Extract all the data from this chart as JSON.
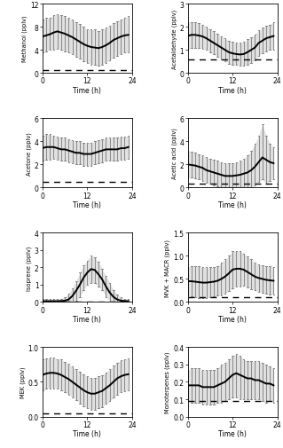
{
  "subplots": [
    {
      "ylabel": "Methanol (pplv)",
      "ylim": [
        0,
        12
      ],
      "yticks": [
        0,
        4,
        8,
        12
      ],
      "mean": [
        6.3,
        6.5,
        6.7,
        7.0,
        7.2,
        7.0,
        6.8,
        6.5,
        6.2,
        5.8,
        5.4,
        5.0,
        4.7,
        4.5,
        4.4,
        4.3,
        4.5,
        4.8,
        5.2,
        5.7,
        6.0,
        6.3,
        6.5,
        6.6
      ],
      "std_upper": [
        9.2,
        9.5,
        9.6,
        10.0,
        10.2,
        10.0,
        9.8,
        9.5,
        9.2,
        8.8,
        8.5,
        8.0,
        7.5,
        7.5,
        7.5,
        7.3,
        7.5,
        7.8,
        8.2,
        8.7,
        9.0,
        9.3,
        9.6,
        9.8
      ],
      "std_lower": [
        3.5,
        3.8,
        4.0,
        4.0,
        4.2,
        4.0,
        3.8,
        3.5,
        3.2,
        2.8,
        2.5,
        2.0,
        1.8,
        1.5,
        1.4,
        1.3,
        1.5,
        1.8,
        2.2,
        2.7,
        3.0,
        3.3,
        3.5,
        3.6
      ],
      "detection_limit": 0.5
    },
    {
      "ylabel": "Acetaldehyde (pplv)",
      "ylim": [
        0,
        3
      ],
      "yticks": [
        0,
        1,
        2,
        3
      ],
      "mean": [
        1.6,
        1.65,
        1.65,
        1.62,
        1.58,
        1.5,
        1.4,
        1.3,
        1.2,
        1.1,
        1.0,
        0.9,
        0.85,
        0.82,
        0.8,
        0.82,
        0.9,
        1.0,
        1.1,
        1.3,
        1.4,
        1.5,
        1.55,
        1.6
      ],
      "std_upper": [
        2.2,
        2.2,
        2.2,
        2.15,
        2.1,
        2.0,
        1.9,
        1.8,
        1.7,
        1.6,
        1.5,
        1.4,
        1.35,
        1.3,
        1.3,
        1.35,
        1.45,
        1.55,
        1.65,
        1.85,
        1.95,
        2.05,
        2.1,
        2.2
      ],
      "std_lower": [
        1.0,
        1.1,
        1.1,
        1.1,
        1.06,
        1.0,
        0.9,
        0.8,
        0.7,
        0.6,
        0.5,
        0.4,
        0.35,
        0.34,
        0.3,
        0.3,
        0.35,
        0.45,
        0.55,
        0.75,
        0.85,
        0.95,
        1.0,
        1.0
      ],
      "detection_limit": 0.6
    },
    {
      "ylabel": "Acetone (pplv)",
      "ylim": [
        0,
        6
      ],
      "yticks": [
        0,
        2,
        4,
        6
      ],
      "mean": [
        3.4,
        3.5,
        3.5,
        3.5,
        3.4,
        3.3,
        3.3,
        3.2,
        3.1,
        3.0,
        3.0,
        2.9,
        2.9,
        2.9,
        3.0,
        3.1,
        3.2,
        3.3,
        3.3,
        3.3,
        3.3,
        3.4,
        3.4,
        3.5
      ],
      "std_upper": [
        4.5,
        4.6,
        4.6,
        4.5,
        4.4,
        4.3,
        4.3,
        4.2,
        4.1,
        4.0,
        4.0,
        3.9,
        3.9,
        3.9,
        4.0,
        4.1,
        4.2,
        4.3,
        4.3,
        4.3,
        4.3,
        4.4,
        4.4,
        4.5
      ],
      "std_lower": [
        2.3,
        2.4,
        2.4,
        2.5,
        2.4,
        2.3,
        2.3,
        2.2,
        2.1,
        2.0,
        2.0,
        1.9,
        1.9,
        1.9,
        2.0,
        2.1,
        2.2,
        2.3,
        2.3,
        2.3,
        2.3,
        2.4,
        2.4,
        2.5
      ],
      "detection_limit": 0.5
    },
    {
      "ylabel": "Acetic acid (pplv)",
      "ylim": [
        0,
        6
      ],
      "yticks": [
        0,
        2,
        4,
        6
      ],
      "mean": [
        2.0,
        1.95,
        1.9,
        1.8,
        1.7,
        1.5,
        1.4,
        1.3,
        1.2,
        1.1,
        1.0,
        1.0,
        1.0,
        1.05,
        1.1,
        1.2,
        1.3,
        1.5,
        1.8,
        2.2,
        2.6,
        2.4,
        2.2,
        2.1
      ],
      "std_upper": [
        3.2,
        3.1,
        3.0,
        2.9,
        2.8,
        2.6,
        2.5,
        2.4,
        2.3,
        2.2,
        2.1,
        2.1,
        2.1,
        2.2,
        2.3,
        2.5,
        2.8,
        3.2,
        3.8,
        4.5,
        5.5,
        4.5,
        3.8,
        3.5
      ],
      "std_lower": [
        0.8,
        0.85,
        0.8,
        0.7,
        0.6,
        0.4,
        0.3,
        0.2,
        0.1,
        0.0,
        0.0,
        0.0,
        0.0,
        0.0,
        0.0,
        0.0,
        0.0,
        0.0,
        0.2,
        0.5,
        0.7,
        0.3,
        0.6,
        0.7
      ],
      "detection_limit": 0.3
    },
    {
      "ylabel": "Isoprene (pplv)",
      "ylim": [
        0,
        4
      ],
      "yticks": [
        0,
        1,
        2,
        3,
        4
      ],
      "mean": [
        0.05,
        0.05,
        0.05,
        0.05,
        0.05,
        0.06,
        0.08,
        0.15,
        0.35,
        0.65,
        1.0,
        1.4,
        1.7,
        1.9,
        1.85,
        1.6,
        1.3,
        0.9,
        0.55,
        0.3,
        0.15,
        0.08,
        0.06,
        0.05
      ],
      "std_upper": [
        0.2,
        0.2,
        0.2,
        0.2,
        0.2,
        0.2,
        0.3,
        0.5,
        0.8,
        1.2,
        1.7,
        2.1,
        2.4,
        2.7,
        2.6,
        2.3,
        1.9,
        1.5,
        1.1,
        0.7,
        0.45,
        0.3,
        0.2,
        0.2
      ],
      "std_lower": [
        0.0,
        0.0,
        0.0,
        0.0,
        0.0,
        0.0,
        0.0,
        0.0,
        0.0,
        0.1,
        0.3,
        0.7,
        1.0,
        1.1,
        1.1,
        0.9,
        0.7,
        0.3,
        0.05,
        0.0,
        0.0,
        0.0,
        0.0,
        0.0
      ],
      "detection_limit": 0.05
    },
    {
      "ylabel": "MVK + MACR (pplv)",
      "ylim": [
        0,
        1.5
      ],
      "yticks": [
        0,
        0.5,
        1.0,
        1.5
      ],
      "mean": [
        0.45,
        0.45,
        0.44,
        0.43,
        0.42,
        0.42,
        0.43,
        0.44,
        0.46,
        0.5,
        0.55,
        0.62,
        0.7,
        0.72,
        0.72,
        0.7,
        0.65,
        0.6,
        0.55,
        0.52,
        0.5,
        0.48,
        0.47,
        0.46
      ],
      "std_upper": [
        0.75,
        0.78,
        0.78,
        0.78,
        0.76,
        0.75,
        0.75,
        0.76,
        0.78,
        0.85,
        0.92,
        1.0,
        1.1,
        1.1,
        1.1,
        1.05,
        0.98,
        0.92,
        0.85,
        0.82,
        0.8,
        0.78,
        0.77,
        0.76
      ],
      "std_lower": [
        0.15,
        0.12,
        0.1,
        0.08,
        0.08,
        0.09,
        0.11,
        0.12,
        0.14,
        0.15,
        0.18,
        0.24,
        0.3,
        0.34,
        0.34,
        0.35,
        0.32,
        0.28,
        0.25,
        0.22,
        0.2,
        0.18,
        0.17,
        0.16
      ],
      "detection_limit": 0.1
    },
    {
      "ylabel": "MEK (pplv)",
      "ylim": [
        0,
        1
      ],
      "yticks": [
        0,
        0.5,
        1.0
      ],
      "mean": [
        0.6,
        0.62,
        0.63,
        0.63,
        0.62,
        0.6,
        0.57,
        0.54,
        0.5,
        0.46,
        0.42,
        0.38,
        0.35,
        0.33,
        0.33,
        0.35,
        0.37,
        0.41,
        0.45,
        0.5,
        0.55,
        0.58,
        0.6,
        0.61
      ],
      "std_upper": [
        0.82,
        0.84,
        0.85,
        0.85,
        0.83,
        0.82,
        0.79,
        0.76,
        0.72,
        0.68,
        0.65,
        0.61,
        0.58,
        0.56,
        0.56,
        0.58,
        0.6,
        0.64,
        0.68,
        0.73,
        0.78,
        0.81,
        0.83,
        0.84
      ],
      "std_lower": [
        0.38,
        0.4,
        0.41,
        0.41,
        0.41,
        0.38,
        0.35,
        0.32,
        0.28,
        0.24,
        0.19,
        0.15,
        0.12,
        0.1,
        0.1,
        0.12,
        0.14,
        0.18,
        0.22,
        0.27,
        0.32,
        0.35,
        0.37,
        0.38
      ],
      "detection_limit": 0.05
    },
    {
      "ylabel": "Monoterpenes (pplv)",
      "ylim": [
        0,
        0.4
      ],
      "yticks": [
        0,
        0.1,
        0.2,
        0.3,
        0.4
      ],
      "mean": [
        0.18,
        0.18,
        0.18,
        0.18,
        0.17,
        0.17,
        0.17,
        0.17,
        0.18,
        0.19,
        0.2,
        0.22,
        0.24,
        0.25,
        0.24,
        0.23,
        0.22,
        0.22,
        0.21,
        0.21,
        0.2,
        0.19,
        0.19,
        0.18
      ],
      "std_upper": [
        0.27,
        0.28,
        0.28,
        0.28,
        0.27,
        0.27,
        0.27,
        0.27,
        0.28,
        0.3,
        0.31,
        0.33,
        0.35,
        0.36,
        0.35,
        0.33,
        0.32,
        0.32,
        0.32,
        0.32,
        0.31,
        0.3,
        0.29,
        0.28
      ],
      "std_lower": [
        0.09,
        0.08,
        0.08,
        0.08,
        0.07,
        0.07,
        0.07,
        0.07,
        0.08,
        0.08,
        0.09,
        0.1,
        0.11,
        0.11,
        0.1,
        0.1,
        0.1,
        0.1,
        0.1,
        0.1,
        0.09,
        0.08,
        0.09,
        0.08
      ],
      "detection_limit": 0.09
    }
  ],
  "time_hours": [
    0,
    1,
    2,
    3,
    4,
    5,
    6,
    7,
    8,
    9,
    10,
    11,
    12,
    13,
    14,
    15,
    16,
    17,
    18,
    19,
    20,
    21,
    22,
    23
  ],
  "mean_color": "#000000",
  "bar_color": "#c8c8c8",
  "dashed_color": "#000000",
  "line_width": 1.4,
  "xlabel": "Time (h)",
  "xticks": [
    0,
    12,
    24
  ],
  "xlim": [
    0,
    24
  ]
}
